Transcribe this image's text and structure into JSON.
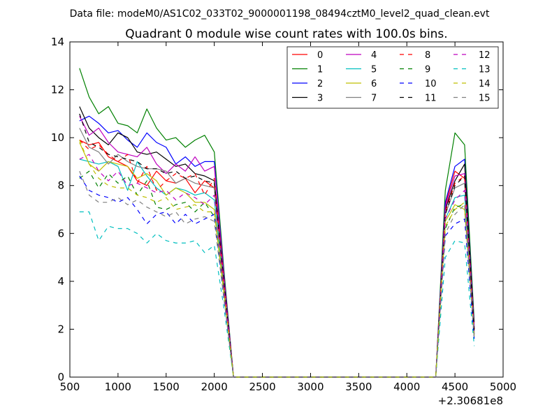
{
  "suptitle": "Data file: modeM0/AS1C02_033T02_9000001198_08494cztM0_level2_quad_clean.evt",
  "chart_data": {
    "type": "line",
    "title": "Quadrant 0 module wise count rates with 100.0s bins.",
    "xlabel": "",
    "ylabel": "",
    "x_offset_label": "+2.30681e8",
    "xlim": [
      500,
      5000
    ],
    "ylim": [
      0,
      14
    ],
    "x_ticks": [
      500,
      1000,
      1500,
      2000,
      2500,
      3000,
      3500,
      4000,
      4500,
      5000
    ],
    "y_ticks": [
      0,
      2,
      4,
      6,
      8,
      10,
      12,
      14
    ],
    "grid": false,
    "legend_position": "top-right",
    "legend_columns": 4,
    "x": [
      600,
      700,
      800,
      900,
      1000,
      1100,
      1200,
      1300,
      1400,
      1500,
      1600,
      1700,
      1800,
      1900,
      2000,
      2100,
      2200,
      2300,
      2400,
      2500,
      2600,
      2700,
      2800,
      2900,
      3000,
      3100,
      3200,
      3300,
      3400,
      3500,
      3600,
      3700,
      3800,
      3900,
      4000,
      4100,
      4200,
      4300,
      4400,
      4500,
      4600,
      4700
    ],
    "series": [
      {
        "name": "0",
        "color": "#ff0000",
        "dash": "solid",
        "values": [
          9.9,
          9.7,
          9.8,
          9.2,
          9.0,
          8.8,
          8.2,
          8.0,
          8.6,
          8.2,
          8.1,
          8.3,
          7.7,
          8.2,
          7.9,
          4.0,
          0,
          0,
          0,
          0,
          0,
          0,
          0,
          0,
          0,
          0,
          0,
          0,
          0,
          0,
          0,
          0,
          0,
          0,
          0,
          0,
          0,
          0,
          7.2,
          8.6,
          8.3,
          2.0
        ]
      },
      {
        "name": "1",
        "color": "#008000",
        "dash": "solid",
        "values": [
          12.9,
          11.7,
          11.0,
          11.3,
          10.6,
          10.5,
          10.2,
          11.2,
          10.4,
          9.9,
          10.0,
          9.6,
          9.9,
          10.1,
          9.4,
          4.5,
          0,
          0,
          0,
          0,
          0,
          0,
          0,
          0,
          0,
          0,
          0,
          0,
          0,
          0,
          0,
          0,
          0,
          0,
          0,
          0,
          0,
          0,
          7.8,
          10.2,
          9.7,
          2.3
        ]
      },
      {
        "name": "2",
        "color": "#0000ff",
        "dash": "solid",
        "values": [
          10.7,
          10.9,
          10.6,
          10.2,
          10.3,
          9.9,
          9.6,
          10.2,
          9.8,
          9.6,
          8.9,
          9.2,
          8.8,
          9.0,
          9.0,
          4.3,
          0,
          0,
          0,
          0,
          0,
          0,
          0,
          0,
          0,
          0,
          0,
          0,
          0,
          0,
          0,
          0,
          0,
          0,
          0,
          0,
          0,
          0,
          7.3,
          8.8,
          9.1,
          2.1
        ]
      },
      {
        "name": "3",
        "color": "#000000",
        "dash": "solid",
        "values": [
          11.3,
          10.4,
          10.0,
          9.7,
          10.2,
          10.0,
          9.4,
          9.3,
          9.4,
          9.1,
          8.8,
          8.9,
          8.5,
          8.4,
          8.2,
          4.1,
          0,
          0,
          0,
          0,
          0,
          0,
          0,
          0,
          0,
          0,
          0,
          0,
          0,
          0,
          0,
          0,
          0,
          0,
          0,
          0,
          0,
          0,
          7.0,
          8.2,
          8.9,
          2.0
        ]
      },
      {
        "name": "4",
        "color": "#bf00bf",
        "dash": "solid",
        "values": [
          10.9,
          10.1,
          10.4,
          9.8,
          9.4,
          9.3,
          9.2,
          9.6,
          8.9,
          8.5,
          8.9,
          8.6,
          9.2,
          8.6,
          8.8,
          4.2,
          0,
          0,
          0,
          0,
          0,
          0,
          0,
          0,
          0,
          0,
          0,
          0,
          0,
          0,
          0,
          0,
          0,
          0,
          0,
          0,
          0,
          0,
          7.1,
          8.4,
          8.5,
          2.0
        ]
      },
      {
        "name": "5",
        "color": "#00bfbf",
        "dash": "solid",
        "values": [
          9.1,
          9.0,
          8.9,
          9.0,
          8.8,
          7.8,
          9.0,
          8.4,
          7.9,
          7.6,
          7.9,
          7.8,
          7.6,
          7.7,
          7.4,
          3.8,
          0,
          0,
          0,
          0,
          0,
          0,
          0,
          0,
          0,
          0,
          0,
          0,
          0,
          0,
          0,
          0,
          0,
          0,
          0,
          0,
          0,
          0,
          6.6,
          7.5,
          7.6,
          1.8
        ]
      },
      {
        "name": "6",
        "color": "#bfbf00",
        "dash": "solid",
        "values": [
          9.8,
          8.9,
          8.6,
          9.0,
          8.9,
          8.8,
          8.3,
          8.5,
          8.2,
          7.6,
          7.9,
          7.7,
          7.3,
          7.3,
          7.0,
          3.6,
          0,
          0,
          0,
          0,
          0,
          0,
          0,
          0,
          0,
          0,
          0,
          0,
          0,
          0,
          0,
          0,
          0,
          0,
          0,
          0,
          0,
          0,
          6.5,
          7.2,
          7.0,
          1.7
        ]
      },
      {
        "name": "7",
        "color": "#808080",
        "dash": "solid",
        "values": [
          10.4,
          9.6,
          9.4,
          8.9,
          9.3,
          9.0,
          8.8,
          8.7,
          8.7,
          8.6,
          8.1,
          8.3,
          8.1,
          8.0,
          7.9,
          3.9,
          0,
          0,
          0,
          0,
          0,
          0,
          0,
          0,
          0,
          0,
          0,
          0,
          0,
          0,
          0,
          0,
          0,
          0,
          0,
          0,
          0,
          0,
          6.8,
          7.9,
          8.1,
          1.9
        ]
      },
      {
        "name": "8",
        "color": "#ff0000",
        "dash": "dashed",
        "values": [
          9.9,
          9.5,
          9.7,
          9.3,
          9.0,
          9.3,
          8.1,
          8.8,
          7.8,
          8.2,
          8.5,
          8.3,
          8.5,
          7.6,
          8.3,
          4.0,
          0,
          0,
          0,
          0,
          0,
          0,
          0,
          0,
          0,
          0,
          0,
          0,
          0,
          0,
          0,
          0,
          0,
          0,
          0,
          0,
          0,
          0,
          6.9,
          8.1,
          8.4,
          2.0
        ]
      },
      {
        "name": "9",
        "color": "#008000",
        "dash": "dashed",
        "values": [
          8.3,
          8.6,
          7.9,
          8.5,
          8.1,
          8.4,
          7.6,
          8.2,
          7.1,
          7.0,
          7.2,
          7.3,
          6.9,
          7.3,
          6.7,
          3.5,
          0,
          0,
          0,
          0,
          0,
          0,
          0,
          0,
          0,
          0,
          0,
          0,
          0,
          0,
          0,
          0,
          0,
          0,
          0,
          0,
          0,
          0,
          6.2,
          7.1,
          7.2,
          1.7
        ]
      },
      {
        "name": "10",
        "color": "#0000ff",
        "dash": "dashed",
        "values": [
          8.4,
          7.8,
          7.6,
          7.5,
          7.3,
          7.5,
          7.0,
          6.4,
          6.8,
          6.9,
          6.4,
          6.8,
          6.4,
          6.6,
          6.8,
          3.3,
          0,
          0,
          0,
          0,
          0,
          0,
          0,
          0,
          0,
          0,
          0,
          0,
          0,
          0,
          0,
          0,
          0,
          0,
          0,
          0,
          0,
          0,
          5.9,
          6.4,
          6.6,
          1.6
        ]
      },
      {
        "name": "11",
        "color": "#000000",
        "dash": "dashed",
        "values": [
          11.0,
          9.8,
          9.6,
          9.3,
          9.2,
          9.1,
          9.0,
          8.7,
          8.7,
          8.5,
          8.6,
          8.3,
          8.4,
          8.2,
          8.1,
          4.0,
          0,
          0,
          0,
          0,
          0,
          0,
          0,
          0,
          0,
          0,
          0,
          0,
          0,
          0,
          0,
          0,
          0,
          0,
          0,
          0,
          0,
          0,
          6.8,
          8.0,
          8.4,
          1.9
        ]
      },
      {
        "name": "12",
        "color": "#bf00bf",
        "dash": "dashed",
        "values": [
          9.1,
          9.3,
          8.6,
          8.2,
          8.6,
          8.0,
          8.1,
          7.9,
          7.7,
          7.8,
          7.4,
          7.7,
          7.5,
          7.2,
          7.6,
          3.7,
          0,
          0,
          0,
          0,
          0,
          0,
          0,
          0,
          0,
          0,
          0,
          0,
          0,
          0,
          0,
          0,
          0,
          0,
          0,
          0,
          0,
          0,
          6.6,
          7.4,
          7.8,
          1.8
        ]
      },
      {
        "name": "13",
        "color": "#00bfbf",
        "dash": "dashed",
        "values": [
          6.9,
          6.9,
          5.7,
          6.3,
          6.2,
          6.2,
          6.0,
          5.6,
          6.0,
          5.7,
          5.6,
          5.6,
          5.7,
          5.2,
          5.5,
          2.9,
          0,
          0,
          0,
          0,
          0,
          0,
          0,
          0,
          0,
          0,
          0,
          0,
          0,
          0,
          0,
          0,
          0,
          0,
          0,
          0,
          0,
          0,
          5.0,
          5.7,
          5.6,
          1.3
        ]
      },
      {
        "name": "14",
        "color": "#bfbf00",
        "dash": "dashed",
        "values": [
          9.9,
          8.9,
          8.3,
          8.0,
          7.9,
          7.9,
          7.6,
          7.5,
          7.3,
          7.5,
          7.0,
          7.1,
          7.2,
          6.9,
          6.9,
          3.5,
          0,
          0,
          0,
          0,
          0,
          0,
          0,
          0,
          0,
          0,
          0,
          0,
          0,
          0,
          0,
          0,
          0,
          0,
          0,
          0,
          0,
          0,
          6.3,
          7.0,
          7.3,
          1.7
        ]
      },
      {
        "name": "15",
        "color": "#808080",
        "dash": "dashed",
        "values": [
          8.6,
          7.6,
          7.3,
          7.3,
          7.5,
          7.2,
          7.4,
          7.1,
          6.9,
          6.7,
          6.9,
          6.4,
          6.6,
          6.7,
          6.5,
          3.3,
          0,
          0,
          0,
          0,
          0,
          0,
          0,
          0,
          0,
          0,
          0,
          0,
          0,
          0,
          0,
          0,
          0,
          0,
          0,
          0,
          0,
          0,
          6.0,
          6.8,
          7.2,
          1.6
        ]
      }
    ]
  }
}
